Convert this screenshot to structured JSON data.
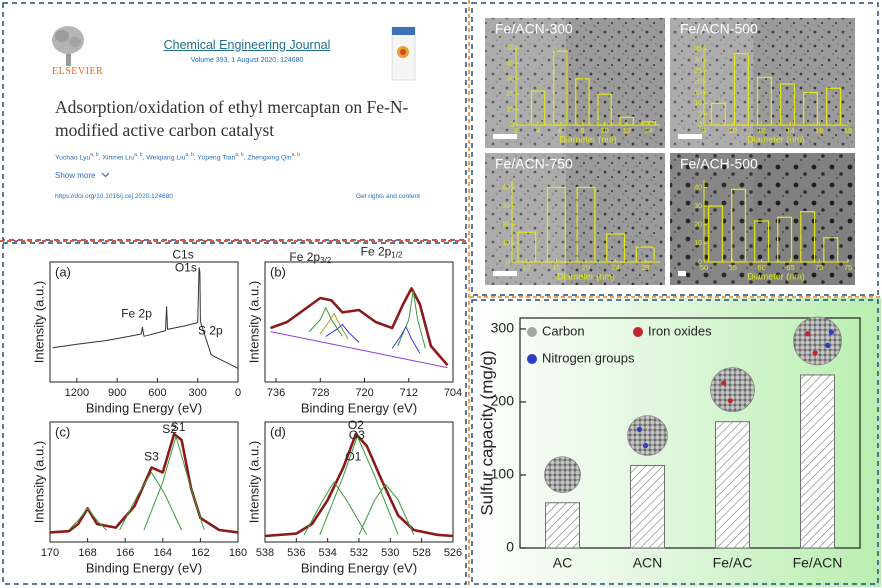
{
  "article": {
    "publisher": "ELSEVIER",
    "journal": "Chemical Engineering Journal",
    "volume": "Volume 393, 1 August 2020, 124680",
    "title": "Adsorption/oxidation of ethyl mercaptan on Fe-N-modified active carbon catalyst",
    "authors": [
      {
        "name": "Yuchao Lyu",
        "affil": "a, b"
      },
      {
        "name": ", Xinmei Liu",
        "affil": "a, b"
      },
      {
        "name": ", Weiqiang Liu",
        "affil": "a, b"
      },
      {
        "name": ", Yupeng Tian",
        "affil": "a, b"
      },
      {
        "name": ", Zhengxing Qin",
        "affil": "a, b"
      }
    ],
    "show_more": "Show more",
    "doi": "https://doi.org/10.1016/j.cej.2020.124680",
    "rights": "Get rights and content"
  },
  "chart_data": [
    {
      "type": "bar",
      "ylabel": "Sulfur capacity (mg/g)",
      "categories": [
        "AC",
        "ACN",
        "Fe/AC",
        "Fe/ACN"
      ],
      "values": [
        62,
        113,
        173,
        237
      ],
      "color": "#707070",
      "ylim": [
        0,
        315
      ],
      "yticks": [
        0,
        100,
        200,
        300
      ],
      "legend": [
        {
          "name": "Carbon",
          "color": "#a6a6a6"
        },
        {
          "name": "Iron oxides",
          "color": "#c0282d"
        },
        {
          "name": "Nitrogen groups",
          "color": "#2a3cc8"
        }
      ]
    },
    {
      "type": "line",
      "panel_label": "(a)",
      "xlabel": "Binding Energy (eV)",
      "ylabel": "Intensity (a.u.)",
      "xlim": [
        1400,
        0
      ],
      "xticks": [
        1200,
        900,
        600,
        300,
        0
      ],
      "ylim": [
        0,
        105
      ],
      "series": [
        {
          "color": "#333333",
          "x": [
            1380,
            1200,
            1000,
            900,
            720,
            712,
            700,
            600,
            540,
            532,
            525,
            400,
            300,
            290,
            284,
            280,
            200,
            170,
            0
          ],
          "values": [
            30,
            33,
            36,
            38,
            42,
            48,
            40,
            43,
            45,
            66,
            46,
            49,
            52,
            100,
            96,
            53,
            24,
            22,
            12
          ]
        }
      ],
      "annotations": [
        {
          "text": "C1s"
        },
        {
          "text": "O1s"
        },
        {
          "text": "Fe 2p"
        },
        {
          "text": "S 2p"
        }
      ]
    },
    {
      "type": "line",
      "panel_label": "(b)",
      "xlabel": "Binding Energy (eV)",
      "ylabel": "Intensity (a.u.)",
      "xlim": [
        738,
        704
      ],
      "xticks": [
        736,
        728,
        720,
        712,
        704
      ],
      "ylim": [
        0,
        100
      ],
      "series": [
        {
          "color": "#8b1a1a",
          "x": [
            737,
            734,
            731,
            728,
            726,
            724,
            721,
            718,
            715,
            713,
            711.5,
            710,
            708,
            705
          ],
          "values": [
            45,
            50,
            60,
            70,
            68,
            58,
            60,
            50,
            45,
            65,
            78,
            65,
            30,
            14
          ]
        },
        {
          "color": "#9a3ad0",
          "x": [
            737,
            705
          ],
          "values": [
            42,
            12
          ]
        },
        {
          "color": "#3a9a3a",
          "x": [
            730,
            728,
            727,
            726,
            724
          ],
          "values": [
            42,
            52,
            62,
            52,
            38
          ]
        },
        {
          "color": "#a0a020",
          "x": [
            728,
            726.5,
            725.5,
            724.5,
            723
          ],
          "values": [
            40,
            50,
            57,
            48,
            36
          ]
        },
        {
          "color": "#3a3ad0",
          "x": [
            727,
            725,
            724,
            723,
            721
          ],
          "values": [
            38,
            44,
            48,
            42,
            33
          ]
        },
        {
          "color": "#3a9a3a",
          "x": [
            714,
            712,
            711.2,
            710.4,
            709
          ],
          "values": [
            30,
            52,
            76,
            52,
            28
          ]
        },
        {
          "color": "#3a3ad0",
          "x": [
            715,
            713.5,
            712.5,
            711.5,
            710
          ],
          "values": [
            28,
            38,
            46,
            36,
            24
          ]
        }
      ],
      "annotations": [
        {
          "text": "Fe 2p",
          "sub": "1/2"
        },
        {
          "text": "Fe 2p",
          "sub": "3/2"
        }
      ]
    },
    {
      "type": "line",
      "panel_label": "(c)",
      "xlabel": "Binding Energy (eV)",
      "ylabel": "Intensity (a.u.)",
      "xlim": [
        170,
        160
      ],
      "xticks": [
        170,
        168,
        166,
        164,
        162,
        160
      ],
      "ylim": [
        0,
        100
      ],
      "series": [
        {
          "color": "#8b1a1a",
          "x": [
            170,
            169,
            168.5,
            168,
            167.5,
            166.5,
            165.5,
            164.6,
            164,
            163.4,
            163,
            162.5,
            162,
            161,
            160
          ],
          "values": [
            8,
            9,
            15,
            28,
            15,
            12,
            30,
            62,
            58,
            90,
            85,
            45,
            20,
            10,
            8
          ]
        },
        {
          "color": "#3a9a3a",
          "x": [
            165,
            164,
            163.3,
            162.6,
            161.8
          ],
          "values": [
            10,
            50,
            88,
            50,
            10
          ]
        },
        {
          "color": "#3a9a3a",
          "x": [
            166.3,
            165.3,
            164.6,
            163.9,
            163
          ],
          "values": [
            10,
            40,
            58,
            40,
            10
          ]
        },
        {
          "color": "#3a9a3a",
          "x": [
            169,
            168.5,
            168,
            167.5,
            167
          ],
          "values": [
            10,
            18,
            28,
            18,
            10
          ]
        }
      ],
      "annotations": [
        {
          "text": "S1"
        },
        {
          "text": "S2"
        },
        {
          "text": "S3"
        }
      ]
    },
    {
      "type": "line",
      "panel_label": "(d)",
      "xlabel": "Binding Energy (eV)",
      "ylabel": "Intensity (a.u.)",
      "xlim": [
        538,
        526
      ],
      "xticks": [
        538,
        536,
        534,
        532,
        530,
        528,
        526
      ],
      "ylim": [
        0,
        100
      ],
      "series": [
        {
          "color": "#8b1a1a",
          "x": [
            538,
            536,
            535,
            534,
            533,
            532.2,
            531.5,
            530.5,
            529.5,
            528.5,
            527,
            526
          ],
          "values": [
            5,
            7,
            15,
            35,
            62,
            90,
            80,
            50,
            22,
            10,
            6,
            5
          ]
        },
        {
          "color": "#3a9a3a",
          "x": [
            534.5,
            533,
            532.1,
            531,
            529.5
          ],
          "values": [
            6,
            55,
            88,
            55,
            6
          ]
        },
        {
          "color": "#3a9a3a",
          "x": [
            535.5,
            534.3,
            533.6,
            532.8,
            531.5
          ],
          "values": [
            6,
            35,
            50,
            35,
            6
          ]
        },
        {
          "color": "#3a9a3a",
          "x": [
            532,
            531,
            530.3,
            529.5,
            528.5
          ],
          "values": [
            6,
            35,
            48,
            35,
            6
          ]
        }
      ],
      "annotations": [
        {
          "text": "O2"
        },
        {
          "text": "O3"
        },
        {
          "text": "O1"
        }
      ]
    },
    {
      "type": "bar",
      "title": "Fe/ACN-300",
      "xlabel": "Diameter (nm)",
      "color": "#e6e61e",
      "x": [
        4,
        6,
        8,
        10,
        12,
        14
      ],
      "values": [
        22,
        48,
        30,
        20,
        5,
        2
      ],
      "xlim": [
        2,
        15
      ],
      "xticks": [
        2,
        4,
        6,
        8,
        10,
        12,
        14
      ],
      "ylim": [
        0,
        52
      ],
      "yticks": [
        0,
        10,
        20,
        30,
        40,
        50
      ]
    },
    {
      "type": "bar",
      "title": "Fe/ACN-500",
      "xlabel": "Diameter (nm)",
      "color": "#e6e61e",
      "x": [
        9,
        10.6,
        12.2,
        13.8,
        15.4,
        17
      ],
      "values": [
        10,
        33,
        22,
        19,
        15,
        17
      ],
      "xlim": [
        8,
        18
      ],
      "xticks": [
        8,
        10,
        12,
        14,
        16,
        18
      ],
      "ylim": [
        0,
        37
      ],
      "yticks": [
        0,
        5,
        10,
        15,
        20,
        25,
        30,
        35
      ]
    },
    {
      "type": "bar",
      "title": "Fe/ACN-750",
      "xlabel": "Diameter (nm)",
      "color": "#e6e61e",
      "x": [
        12,
        16,
        20,
        24,
        28
      ],
      "values": [
        16,
        40,
        40,
        15,
        8
      ],
      "xlim": [
        10,
        30
      ],
      "xticks": [
        12,
        16,
        20,
        24,
        28
      ],
      "ylim": [
        0,
        44
      ],
      "yticks": [
        0,
        10,
        20,
        30,
        40
      ]
    },
    {
      "type": "bar",
      "title": "Fe/ACH-500",
      "xlabel": "Diameter (nm)",
      "color": "#e6e61e",
      "x": [
        52,
        56,
        60,
        64,
        68,
        72
      ],
      "values": [
        30,
        39,
        22,
        24,
        27,
        13
      ],
      "xlim": [
        50,
        75
      ],
      "xticks": [
        50,
        55,
        60,
        65,
        70,
        75
      ],
      "ylim": [
        0,
        44
      ],
      "yticks": [
        0,
        10,
        20,
        30,
        40
      ]
    }
  ]
}
